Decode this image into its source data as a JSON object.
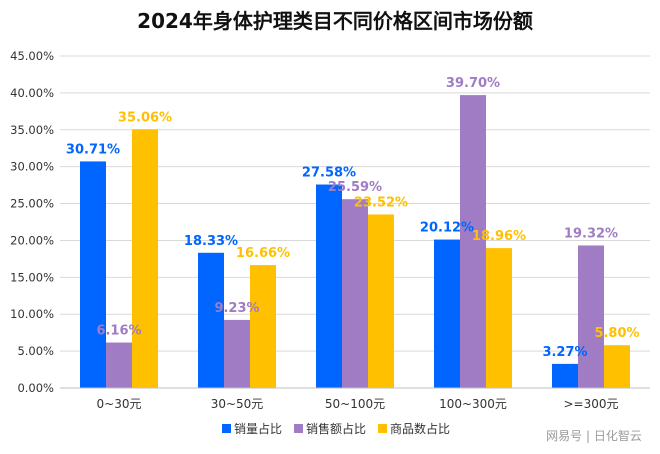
{
  "chart_data": {
    "type": "bar",
    "title": "2024年身体护理类目不同价格区间市场份额",
    "categories": [
      "0~30元",
      "30~50元",
      "50~100元",
      "100~300元",
      ">=300元"
    ],
    "series": [
      {
        "name": "销量占比",
        "color": "#0066ff",
        "values": [
          30.71,
          18.33,
          27.58,
          20.12,
          3.27
        ],
        "labels": [
          "30.71%",
          "18.33%",
          "27.58%",
          "20.12%",
          "3.27%"
        ]
      },
      {
        "name": "销售额占比",
        "color": "#a07cc5",
        "values": [
          6.16,
          9.23,
          25.59,
          39.7,
          19.32
        ],
        "labels": [
          "6.16%",
          "9.23%",
          "25.59%",
          "39.70%",
          "19.32%"
        ]
      },
      {
        "name": "商品数占比",
        "color": "#ffc000",
        "values": [
          35.06,
          16.66,
          23.52,
          18.96,
          5.8
        ],
        "labels": [
          "35.06%",
          "16.66%",
          "23.52%",
          "18.96%",
          "5.80%"
        ]
      }
    ],
    "ylim": [
      0,
      45
    ],
    "yticks": [
      "0.00%",
      "5.00%",
      "10.00%",
      "15.00%",
      "20.00%",
      "25.00%",
      "30.00%",
      "35.00%",
      "40.00%",
      "45.00%"
    ],
    "grid": true,
    "legend": "bottom"
  },
  "watermark": "网易号 | 日化智云"
}
